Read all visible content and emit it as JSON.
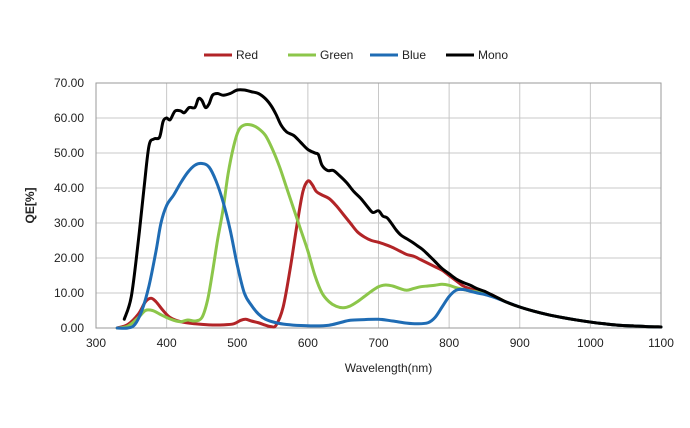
{
  "chart_data": {
    "type": "line",
    "title": "",
    "xlabel": "Wavelength(nm)",
    "ylabel": "QE[%]",
    "xlim": [
      300,
      1100
    ],
    "ylim": [
      0,
      70
    ],
    "xticks": [
      "300",
      "400",
      "500",
      "600",
      "700",
      "800",
      "900",
      "1000",
      "1100"
    ],
    "yticks": [
      "0.00",
      "10.00",
      "20.00",
      "30.00",
      "40.00",
      "50.00",
      "60.00",
      "70.00"
    ],
    "grid": true,
    "legend_position": "top",
    "series": [
      {
        "name": "Red",
        "color": "#b22427",
        "points": [
          [
            330,
            0
          ],
          [
            345,
            1
          ],
          [
            360,
            4
          ],
          [
            370,
            7.5
          ],
          [
            378,
            8.5
          ],
          [
            385,
            7.5
          ],
          [
            395,
            5
          ],
          [
            405,
            3
          ],
          [
            420,
            1.8
          ],
          [
            440,
            1.2
          ],
          [
            460,
            0.9
          ],
          [
            480,
            0.9
          ],
          [
            495,
            1.2
          ],
          [
            505,
            2.2
          ],
          [
            512,
            2.5
          ],
          [
            520,
            2
          ],
          [
            530,
            1.5
          ],
          [
            540,
            0.8
          ],
          [
            548,
            0.4
          ],
          [
            555,
            0.8
          ],
          [
            565,
            6
          ],
          [
            575,
            17
          ],
          [
            585,
            30
          ],
          [
            593,
            39
          ],
          [
            600,
            42
          ],
          [
            606,
            41
          ],
          [
            612,
            39
          ],
          [
            620,
            38
          ],
          [
            630,
            37
          ],
          [
            640,
            35
          ],
          [
            650,
            32.5
          ],
          [
            660,
            30
          ],
          [
            670,
            27.5
          ],
          [
            680,
            26
          ],
          [
            690,
            25
          ],
          [
            700,
            24.5
          ],
          [
            710,
            23.8
          ],
          [
            720,
            23
          ],
          [
            730,
            22
          ],
          [
            740,
            21
          ],
          [
            750,
            20.5
          ],
          [
            760,
            19.5
          ],
          [
            770,
            18.5
          ],
          [
            780,
            17.5
          ],
          [
            790,
            16.5
          ],
          [
            800,
            15
          ],
          [
            810,
            13.5
          ],
          [
            820,
            12
          ],
          [
            830,
            11.2
          ],
          [
            840,
            10.5
          ],
          [
            850,
            10
          ],
          [
            860,
            9.5
          ],
          [
            870,
            8.5
          ],
          [
            880,
            7.5
          ],
          [
            900,
            6
          ],
          [
            920,
            4.8
          ],
          [
            940,
            3.8
          ],
          [
            960,
            3
          ],
          [
            980,
            2.3
          ],
          [
            1000,
            1.7
          ],
          [
            1020,
            1.2
          ],
          [
            1040,
            0.8
          ],
          [
            1060,
            0.6
          ],
          [
            1080,
            0.4
          ],
          [
            1100,
            0.3
          ]
        ]
      },
      {
        "name": "Green",
        "color": "#8cc64a",
        "points": [
          [
            330,
            0
          ],
          [
            345,
            0.5
          ],
          [
            360,
            3
          ],
          [
            370,
            5
          ],
          [
            380,
            5
          ],
          [
            390,
            4
          ],
          [
            400,
            3
          ],
          [
            410,
            2.2
          ],
          [
            420,
            1.8
          ],
          [
            430,
            2.3
          ],
          [
            440,
            2
          ],
          [
            450,
            3
          ],
          [
            458,
            8
          ],
          [
            465,
            16
          ],
          [
            472,
            25
          ],
          [
            480,
            34
          ],
          [
            487,
            44
          ],
          [
            495,
            52
          ],
          [
            502,
            56.5
          ],
          [
            510,
            58
          ],
          [
            520,
            58
          ],
          [
            530,
            57
          ],
          [
            540,
            55
          ],
          [
            550,
            51
          ],
          [
            560,
            46
          ],
          [
            570,
            40
          ],
          [
            580,
            34
          ],
          [
            590,
            28
          ],
          [
            600,
            22
          ],
          [
            610,
            15
          ],
          [
            620,
            10
          ],
          [
            630,
            7.5
          ],
          [
            640,
            6.2
          ],
          [
            650,
            5.8
          ],
          [
            660,
            6.3
          ],
          [
            670,
            7.5
          ],
          [
            680,
            9
          ],
          [
            690,
            10.5
          ],
          [
            700,
            11.8
          ],
          [
            710,
            12.3
          ],
          [
            720,
            12
          ],
          [
            730,
            11.3
          ],
          [
            740,
            10.8
          ],
          [
            750,
            11.3
          ],
          [
            760,
            11.8
          ],
          [
            770,
            12
          ],
          [
            780,
            12.2
          ],
          [
            790,
            12.5
          ],
          [
            800,
            12.2
          ],
          [
            810,
            11.5
          ],
          [
            820,
            11
          ],
          [
            830,
            10.6
          ],
          [
            840,
            10.3
          ],
          [
            850,
            9.8
          ],
          [
            860,
            9.2
          ],
          [
            870,
            8.5
          ],
          [
            880,
            7.5
          ],
          [
            900,
            6
          ],
          [
            920,
            4.8
          ],
          [
            940,
            3.8
          ],
          [
            960,
            3
          ],
          [
            980,
            2.3
          ],
          [
            1000,
            1.7
          ],
          [
            1020,
            1.2
          ],
          [
            1040,
            0.8
          ],
          [
            1060,
            0.6
          ],
          [
            1080,
            0.4
          ],
          [
            1100,
            0.3
          ]
        ]
      },
      {
        "name": "Blue",
        "color": "#1f6cb4",
        "points": [
          [
            330,
            0
          ],
          [
            345,
            0
          ],
          [
            355,
            1
          ],
          [
            365,
            5
          ],
          [
            375,
            12
          ],
          [
            385,
            22
          ],
          [
            392,
            30
          ],
          [
            400,
            35
          ],
          [
            410,
            38
          ],
          [
            420,
            41.5
          ],
          [
            430,
            44.5
          ],
          [
            440,
            46.5
          ],
          [
            450,
            47
          ],
          [
            460,
            46
          ],
          [
            470,
            42
          ],
          [
            480,
            36
          ],
          [
            490,
            28
          ],
          [
            500,
            18
          ],
          [
            510,
            10
          ],
          [
            520,
            6.5
          ],
          [
            530,
            4
          ],
          [
            540,
            2.5
          ],
          [
            555,
            1.5
          ],
          [
            570,
            1
          ],
          [
            590,
            0.7
          ],
          [
            610,
            0.6
          ],
          [
            630,
            0.8
          ],
          [
            645,
            1.5
          ],
          [
            660,
            2.2
          ],
          [
            680,
            2.4
          ],
          [
            700,
            2.5
          ],
          [
            720,
            2
          ],
          [
            740,
            1.4
          ],
          [
            755,
            1.2
          ],
          [
            770,
            1.5
          ],
          [
            780,
            3
          ],
          [
            790,
            6
          ],
          [
            800,
            9
          ],
          [
            810,
            10.8
          ],
          [
            820,
            11
          ],
          [
            830,
            10.5
          ],
          [
            840,
            10
          ],
          [
            850,
            9.6
          ],
          [
            860,
            9
          ],
          [
            870,
            8.3
          ],
          [
            880,
            7.5
          ],
          [
            900,
            6
          ],
          [
            920,
            4.8
          ],
          [
            940,
            3.8
          ],
          [
            960,
            3
          ],
          [
            980,
            2.3
          ],
          [
            1000,
            1.7
          ],
          [
            1020,
            1.2
          ],
          [
            1040,
            0.8
          ],
          [
            1060,
            0.6
          ],
          [
            1080,
            0.4
          ],
          [
            1100,
            0.3
          ]
        ]
      },
      {
        "name": "Mono",
        "color": "#000000",
        "points": [
          [
            340,
            2.5
          ],
          [
            350,
            9
          ],
          [
            360,
            25
          ],
          [
            368,
            40
          ],
          [
            375,
            52
          ],
          [
            382,
            54
          ],
          [
            390,
            54.5
          ],
          [
            395,
            59
          ],
          [
            400,
            60
          ],
          [
            405,
            59.5
          ],
          [
            412,
            62
          ],
          [
            420,
            62
          ],
          [
            425,
            61.5
          ],
          [
            432,
            63
          ],
          [
            440,
            63
          ],
          [
            445,
            65.5
          ],
          [
            450,
            65
          ],
          [
            455,
            63
          ],
          [
            460,
            64
          ],
          [
            465,
            66.5
          ],
          [
            472,
            67
          ],
          [
            480,
            66.5
          ],
          [
            490,
            67
          ],
          [
            500,
            68
          ],
          [
            510,
            68
          ],
          [
            520,
            67.5
          ],
          [
            530,
            67
          ],
          [
            540,
            65.5
          ],
          [
            548,
            63.5
          ],
          [
            555,
            61
          ],
          [
            562,
            58
          ],
          [
            570,
            56
          ],
          [
            580,
            55
          ],
          [
            590,
            53
          ],
          [
            600,
            51
          ],
          [
            610,
            50
          ],
          [
            615,
            49.5
          ],
          [
            620,
            46.5
          ],
          [
            628,
            45
          ],
          [
            636,
            45
          ],
          [
            645,
            43.5
          ],
          [
            655,
            41.5
          ],
          [
            665,
            39
          ],
          [
            675,
            37
          ],
          [
            685,
            34.5
          ],
          [
            692,
            33
          ],
          [
            700,
            33.5
          ],
          [
            706,
            32
          ],
          [
            712,
            31.5
          ],
          [
            718,
            30
          ],
          [
            725,
            28
          ],
          [
            732,
            26.5
          ],
          [
            740,
            25.5
          ],
          [
            748,
            24.5
          ],
          [
            755,
            23.5
          ],
          [
            762,
            22.5
          ],
          [
            770,
            21
          ],
          [
            780,
            19
          ],
          [
            790,
            17
          ],
          [
            800,
            15.5
          ],
          [
            810,
            14
          ],
          [
            820,
            13
          ],
          [
            830,
            12.2
          ],
          [
            840,
            11.2
          ],
          [
            850,
            10.5
          ],
          [
            860,
            9.5
          ],
          [
            870,
            8.5
          ],
          [
            880,
            7.5
          ],
          [
            900,
            6
          ],
          [
            920,
            4.8
          ],
          [
            940,
            3.8
          ],
          [
            960,
            3
          ],
          [
            980,
            2.3
          ],
          [
            1000,
            1.7
          ],
          [
            1020,
            1.2
          ],
          [
            1040,
            0.8
          ],
          [
            1060,
            0.6
          ],
          [
            1080,
            0.4
          ],
          [
            1100,
            0.3
          ]
        ]
      }
    ]
  }
}
